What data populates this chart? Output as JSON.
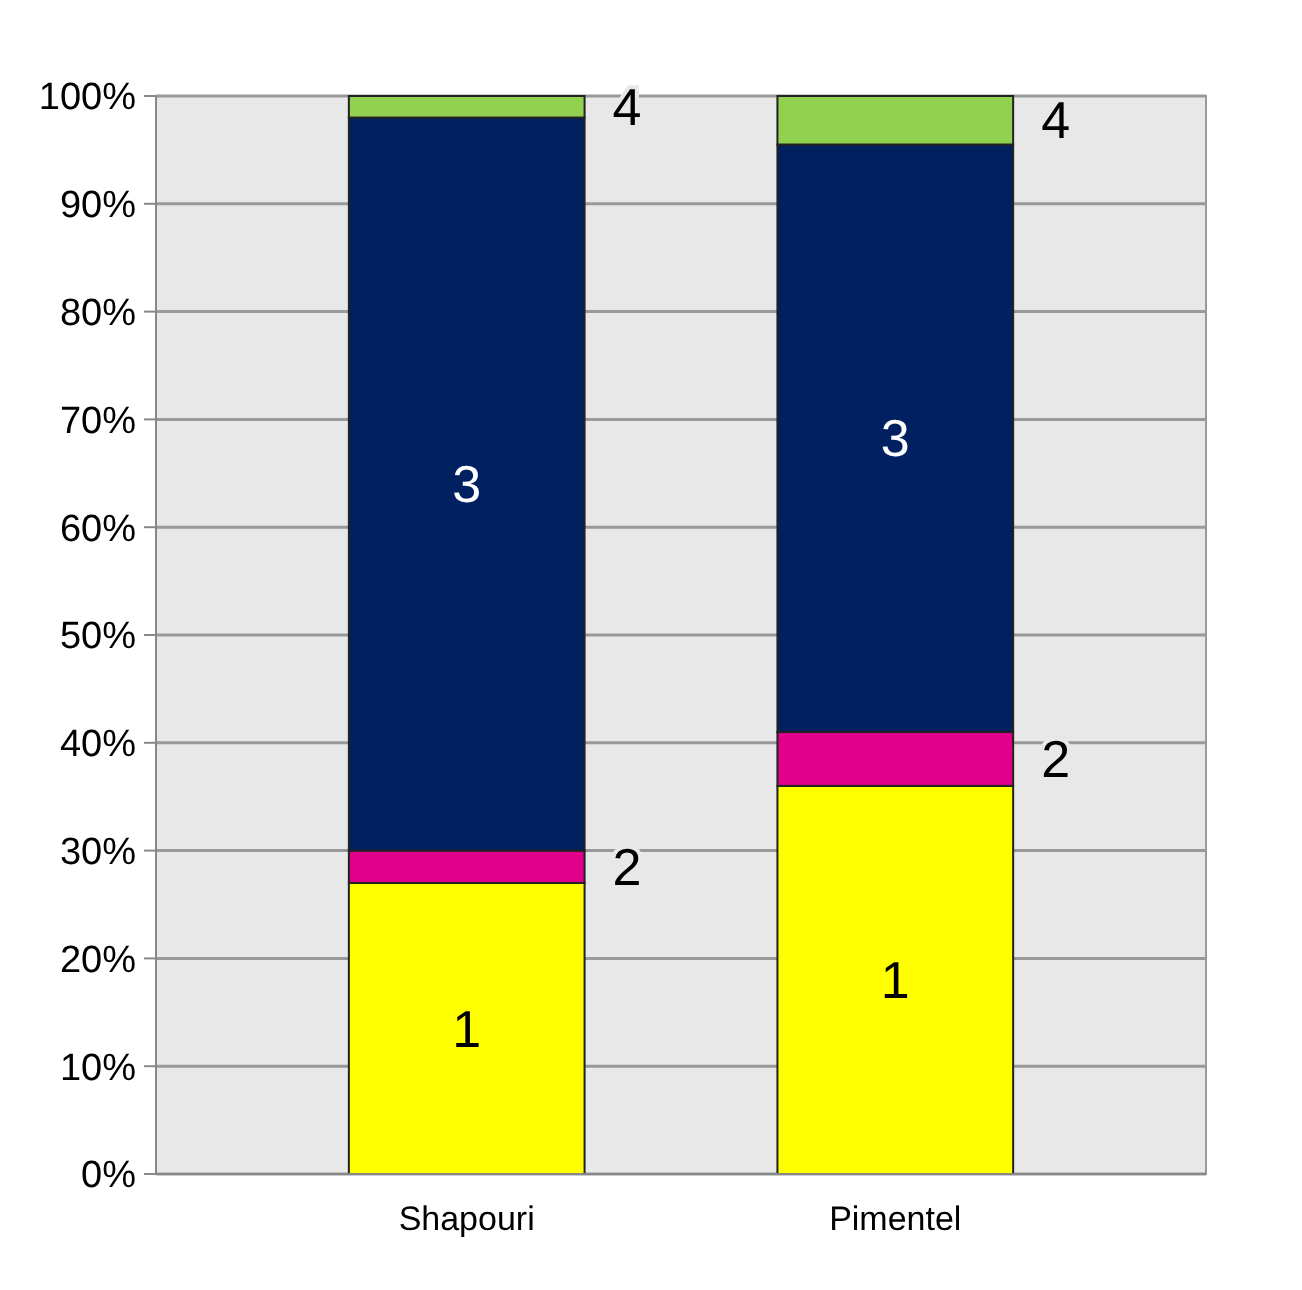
{
  "chart_data": {
    "type": "bar",
    "stacked": true,
    "categories": [
      "Shapouri",
      "Pimentel"
    ],
    "series": [
      {
        "name": "1",
        "color": "#ffff00",
        "values": [
          27,
          36
        ]
      },
      {
        "name": "2",
        "color": "#e0008c",
        "values": [
          3,
          5
        ]
      },
      {
        "name": "3",
        "color": "#002060",
        "values": [
          68,
          54.5
        ]
      },
      {
        "name": "4",
        "color": "#92d050",
        "values": [
          2,
          4.5
        ]
      }
    ],
    "ylim": [
      0,
      100
    ],
    "yticks": [
      {
        "value": 0,
        "label": "0%"
      },
      {
        "value": 10,
        "label": "10%"
      },
      {
        "value": 20,
        "label": "20%"
      },
      {
        "value": 30,
        "label": "30%"
      },
      {
        "value": 40,
        "label": "40%"
      },
      {
        "value": 50,
        "label": "50%"
      },
      {
        "value": 60,
        "label": "60%"
      },
      {
        "value": 70,
        "label": "70%"
      },
      {
        "value": 80,
        "label": "80%"
      },
      {
        "value": 90,
        "label": "90%"
      },
      {
        "value": 100,
        "label": "100%"
      }
    ],
    "grid": "y",
    "legend": false
  }
}
